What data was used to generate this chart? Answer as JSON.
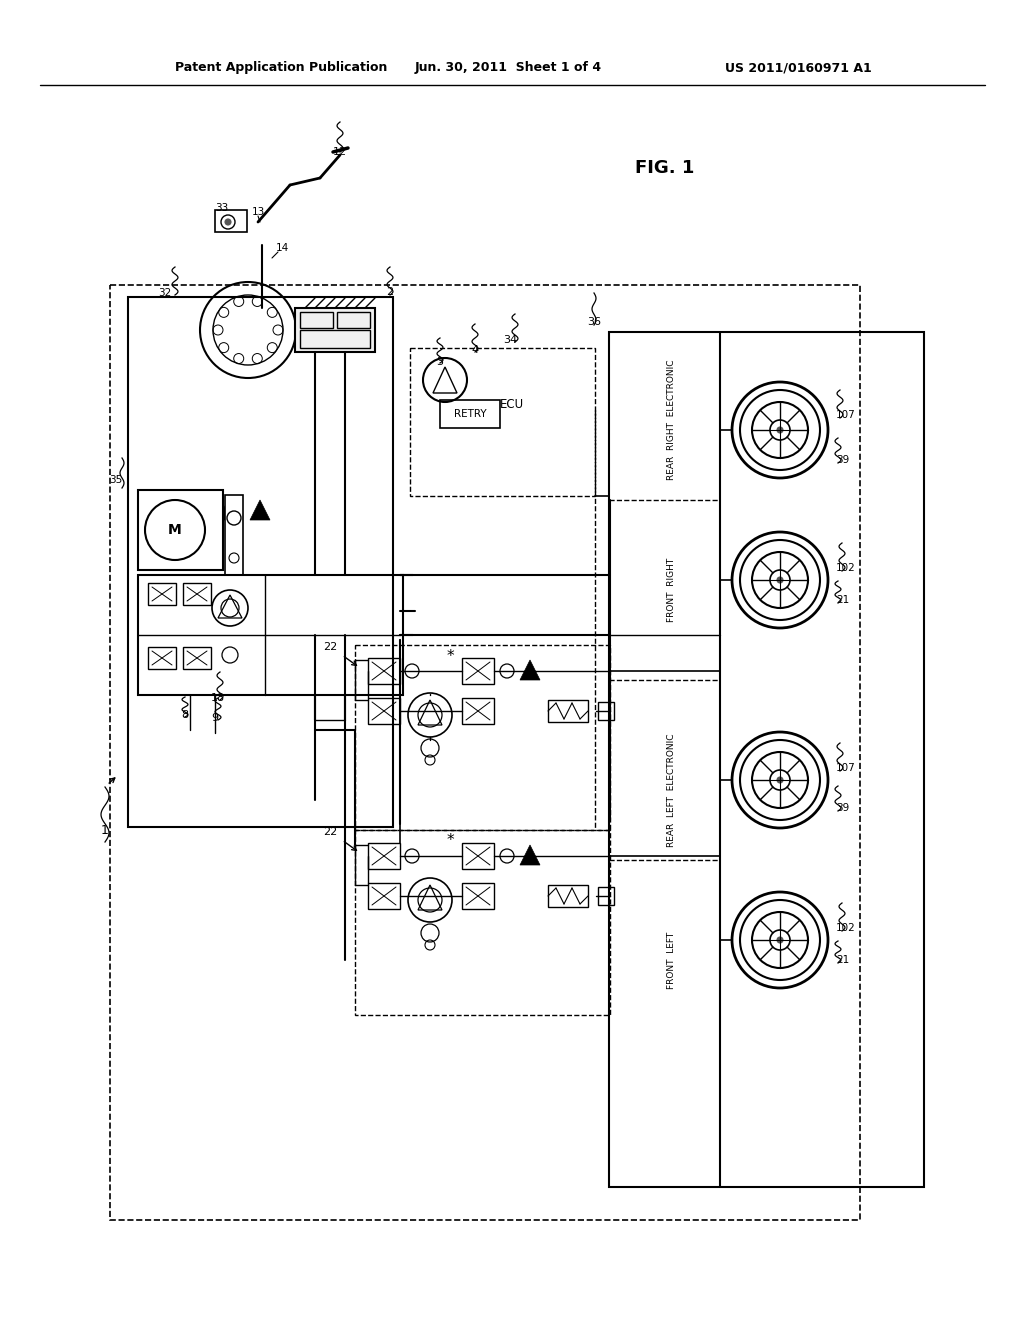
{
  "bg_color": "#ffffff",
  "header_left": "Patent Application Publication",
  "header_center": "Jun. 30, 2011  Sheet 1 of 4",
  "header_right": "US 2011/0160971 A1",
  "fig_label": "FIG. 1"
}
